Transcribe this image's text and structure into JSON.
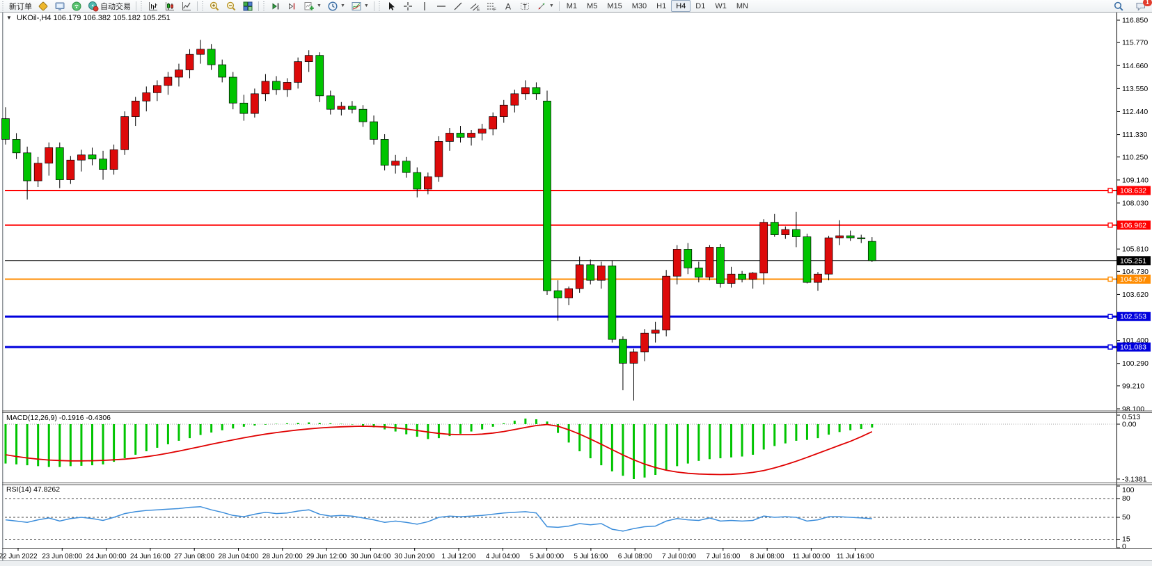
{
  "toolbar": {
    "new_order_label": "新订单",
    "autotrade_label": "自动交易",
    "groups": [
      {
        "items": [
          {
            "name": "new-order-button",
            "label_key": "new_order_label"
          },
          {
            "name": "gold-diamond-button",
            "icon": "gold-diamond-icon"
          },
          {
            "name": "monitor-button",
            "icon": "monitor-icon"
          },
          {
            "name": "signal-button",
            "icon": "signal-icon"
          },
          {
            "name": "autotrade-button",
            "icon": "autotrade-icon",
            "label_key": "autotrade_label"
          }
        ]
      },
      {
        "items": [
          {
            "name": "bar-chart-button",
            "icon": "bar-chart-icon"
          },
          {
            "name": "candlestick-button",
            "icon": "candlestick-icon"
          },
          {
            "name": "line-chart-button",
            "icon": "line-chart-icon"
          }
        ]
      },
      {
        "items": [
          {
            "name": "zoom-in-button",
            "icon": "zoom-in-icon"
          },
          {
            "name": "zoom-out-button",
            "icon": "zoom-out-icon"
          },
          {
            "name": "tile-windows-button",
            "icon": "tile-windows-icon"
          }
        ]
      },
      {
        "items": [
          {
            "name": "auto-scroll-button",
            "icon": "step-forward-icon"
          },
          {
            "name": "chart-shift-button",
            "icon": "step-single-icon"
          },
          {
            "name": "new-chart-button",
            "icon": "add-chart-icon",
            "dropdown": true
          },
          {
            "name": "period-button",
            "icon": "clock-icon",
            "dropdown": true
          },
          {
            "name": "templates-button",
            "icon": "chart-settings-icon",
            "dropdown": true
          }
        ]
      },
      {
        "items": [
          {
            "name": "cursor-button",
            "icon": "pointer-icon"
          },
          {
            "name": "crosshair-button",
            "icon": "crosshair-icon"
          },
          {
            "name": "vline-button",
            "icon": "vline-icon"
          },
          {
            "name": "hline-button",
            "icon": "hline-icon"
          },
          {
            "name": "trendline-button",
            "icon": "trendline-icon"
          },
          {
            "name": "channel-button",
            "icon": "channel-icon"
          },
          {
            "name": "fibonacci-button",
            "icon": "fibonacci-icon"
          },
          {
            "name": "text-button",
            "icon": "text-icon"
          },
          {
            "name": "text-label-button",
            "icon": "label-icon"
          },
          {
            "name": "arrows-button",
            "icon": "arrows-icon",
            "dropdown": true
          }
        ]
      }
    ],
    "timeframes": [
      "M1",
      "M5",
      "M15",
      "M30",
      "H1",
      "H4",
      "D1",
      "W1",
      "MN"
    ],
    "active_timeframe": "H4",
    "chat_badge": "1"
  },
  "chart": {
    "title": "UKOil-,H4  106.179 106.382 105.182 105.251",
    "collapse_glyph": "▼"
  },
  "macd_panel_label": "MACD(12,26,9) -0.1916 -0.4306",
  "rsi_panel_label": "RSI(14) 47.8262",
  "chart_data": {
    "type": "candlestick",
    "symbol": "UKOil-",
    "timeframe": "H4",
    "last_ohlc": {
      "open": 106.179,
      "high": 106.382,
      "low": 105.182,
      "close": 105.251
    },
    "up_candle_color": "#dd0a0a",
    "down_candle_color": "#00c400",
    "price_range": [
      98.1,
      116.85
    ],
    "price_axis_ticks": [
      116.85,
      115.77,
      114.66,
      113.55,
      112.44,
      111.33,
      110.25,
      109.14,
      108.03,
      105.81,
      104.73,
      103.62,
      101.4,
      100.29,
      99.21,
      98.1
    ],
    "hlines": [
      {
        "label": "108.632",
        "price": 108.632,
        "color": "#ff0000",
        "width": 2,
        "marker": true
      },
      {
        "label": "106.962",
        "price": 106.962,
        "color": "#ff0000",
        "width": 2,
        "marker": true
      },
      {
        "label": "105.251",
        "price": 105.251,
        "color": "#000000",
        "width": 1,
        "marker": false
      },
      {
        "label": "104.357",
        "price": 104.357,
        "color": "#ff8c00",
        "width": 2,
        "marker": true
      },
      {
        "label": "102.553",
        "price": 102.553,
        "color": "#0000dd",
        "width": 3,
        "marker": true
      },
      {
        "label": "101.083",
        "price": 101.083,
        "color": "#0000dd",
        "width": 3,
        "marker": true
      }
    ],
    "time_labels": [
      "22 Jun 2022",
      "23 Jun 08:00",
      "24 Jun 00:00",
      "24 Jun 16:00",
      "27 Jun 08:00",
      "28 Jun 04:00",
      "28 Jun 20:00",
      "29 Jun 12:00",
      "30 Jun 04:00",
      "30 Jun 20:00",
      "1 Jul 12:00",
      "4 Jul 04:00",
      "5 Jul 00:00",
      "5 Jul 16:00",
      "6 Jul 08:00",
      "7 Jul 00:00",
      "7 Jul 16:00",
      "8 Jul 08:00",
      "11 Jul 00:00",
      "11 Jul 16:00"
    ],
    "candles": [
      [
        112.1,
        112.65,
        110.85,
        111.1
      ],
      [
        111.1,
        111.4,
        110.15,
        110.45
      ],
      [
        110.45,
        110.75,
        108.2,
        109.1
      ],
      [
        109.1,
        110.25,
        108.8,
        109.95
      ],
      [
        109.95,
        110.95,
        109.35,
        110.7
      ],
      [
        110.7,
        110.95,
        108.75,
        109.15
      ],
      [
        109.15,
        110.3,
        108.95,
        110.1
      ],
      [
        110.1,
        110.6,
        109.55,
        110.35
      ],
      [
        110.35,
        110.7,
        109.85,
        110.15
      ],
      [
        110.15,
        110.55,
        109.15,
        109.65
      ],
      [
        109.65,
        110.85,
        109.4,
        110.6
      ],
      [
        110.6,
        112.45,
        110.35,
        112.2
      ],
      [
        112.2,
        113.15,
        111.75,
        112.95
      ],
      [
        112.95,
        113.65,
        112.45,
        113.35
      ],
      [
        113.35,
        113.95,
        112.95,
        113.7
      ],
      [
        113.7,
        114.35,
        113.25,
        114.1
      ],
      [
        114.1,
        114.75,
        113.65,
        114.45
      ],
      [
        114.45,
        115.45,
        114.05,
        115.2
      ],
      [
        115.2,
        115.9,
        114.75,
        115.45
      ],
      [
        115.45,
        115.7,
        114.45,
        114.7
      ],
      [
        114.7,
        114.95,
        113.85,
        114.1
      ],
      [
        114.1,
        114.35,
        112.55,
        112.85
      ],
      [
        112.85,
        113.25,
        112.0,
        112.35
      ],
      [
        112.35,
        113.55,
        112.15,
        113.3
      ],
      [
        113.3,
        114.25,
        112.95,
        113.9
      ],
      [
        113.9,
        114.15,
        113.25,
        113.5
      ],
      [
        113.5,
        114.05,
        113.15,
        113.85
      ],
      [
        113.85,
        115.05,
        113.55,
        114.85
      ],
      [
        114.85,
        115.4,
        114.35,
        115.15
      ],
      [
        115.15,
        115.3,
        112.9,
        113.2
      ],
      [
        113.2,
        113.45,
        112.3,
        112.55
      ],
      [
        112.55,
        112.9,
        112.25,
        112.7
      ],
      [
        112.7,
        112.95,
        112.35,
        112.55
      ],
      [
        112.55,
        112.75,
        111.7,
        111.95
      ],
      [
        111.95,
        112.25,
        110.85,
        111.1
      ],
      [
        111.1,
        111.35,
        109.6,
        109.85
      ],
      [
        109.85,
        110.35,
        109.45,
        110.05
      ],
      [
        110.05,
        110.25,
        109.25,
        109.5
      ],
      [
        109.5,
        109.75,
        108.3,
        108.7
      ],
      [
        108.7,
        109.5,
        108.45,
        109.3
      ],
      [
        109.3,
        111.25,
        109.05,
        111.0
      ],
      [
        111.0,
        111.65,
        110.55,
        111.4
      ],
      [
        111.4,
        111.75,
        110.95,
        111.2
      ],
      [
        111.2,
        111.55,
        110.8,
        111.4
      ],
      [
        111.4,
        111.85,
        111.05,
        111.6
      ],
      [
        111.6,
        112.4,
        111.3,
        112.2
      ],
      [
        112.2,
        113.0,
        111.9,
        112.75
      ],
      [
        112.75,
        113.5,
        112.4,
        113.3
      ],
      [
        113.3,
        113.95,
        113.0,
        113.6
      ],
      [
        113.6,
        113.85,
        113.0,
        113.3
      ],
      [
        112.95,
        113.45,
        103.6,
        103.8
      ],
      [
        103.8,
        104.3,
        102.35,
        103.45
      ],
      [
        103.45,
        104.0,
        103.1,
        103.9
      ],
      [
        103.9,
        105.45,
        103.7,
        105.05
      ],
      [
        105.05,
        105.3,
        104.1,
        104.3
      ],
      [
        104.3,
        105.2,
        103.9,
        105.0
      ],
      [
        105.0,
        105.25,
        101.3,
        101.45
      ],
      [
        101.45,
        101.6,
        99.0,
        100.3
      ],
      [
        100.3,
        101.0,
        98.5,
        100.85
      ],
      [
        100.85,
        101.95,
        100.4,
        101.75
      ],
      [
        101.75,
        102.3,
        101.3,
        101.9
      ],
      [
        101.9,
        104.8,
        101.6,
        104.5
      ],
      [
        104.5,
        106.0,
        104.1,
        105.8
      ],
      [
        105.8,
        106.1,
        104.6,
        104.9
      ],
      [
        104.9,
        105.2,
        104.2,
        104.45
      ],
      [
        104.45,
        106.0,
        104.3,
        105.9
      ],
      [
        105.9,
        106.05,
        103.95,
        104.15
      ],
      [
        104.15,
        104.95,
        103.95,
        104.6
      ],
      [
        104.6,
        104.75,
        104.2,
        104.35
      ],
      [
        104.35,
        104.7,
        103.9,
        104.65
      ],
      [
        104.65,
        107.25,
        104.1,
        107.1
      ],
      [
        107.1,
        107.5,
        106.4,
        106.5
      ],
      [
        106.5,
        106.9,
        106.3,
        106.75
      ],
      [
        106.75,
        107.6,
        105.9,
        106.4
      ],
      [
        106.4,
        106.55,
        104.15,
        104.2
      ],
      [
        104.2,
        104.7,
        103.8,
        104.6
      ],
      [
        104.6,
        106.45,
        104.3,
        106.35
      ],
      [
        106.35,
        107.2,
        106.0,
        106.45
      ],
      [
        106.45,
        106.7,
        106.2,
        106.35
      ],
      [
        106.35,
        106.5,
        106.1,
        106.3
      ],
      [
        106.179,
        106.382,
        105.182,
        105.251
      ]
    ],
    "indicators": {
      "macd": {
        "label": "MACD(12,26,9)",
        "values_text": "-0.1916 -0.4306",
        "axis_ticks": [
          "0.513",
          "0.00",
          "-3.1381"
        ],
        "range": [
          -3.1381,
          0.513
        ],
        "histogram_color": "#00c400",
        "signal_color": "#e00000",
        "histogram": [
          -2.25,
          -2.3,
          -2.35,
          -2.4,
          -2.45,
          -2.45,
          -2.4,
          -2.38,
          -2.35,
          -2.3,
          -2.15,
          -1.95,
          -1.75,
          -1.55,
          -1.35,
          -1.15,
          -0.95,
          -0.8,
          -0.62,
          -0.48,
          -0.35,
          -0.25,
          -0.15,
          -0.08,
          -0.03,
          0.02,
          0.05,
          0.08,
          0.1,
          0.08,
          0.05,
          0.02,
          -0.02,
          -0.08,
          -0.18,
          -0.3,
          -0.42,
          -0.58,
          -0.72,
          -0.85,
          -0.8,
          -0.68,
          -0.55,
          -0.42,
          -0.3,
          -0.15,
          0.05,
          0.2,
          0.32,
          0.28,
          0.15,
          -0.5,
          -1.05,
          -1.55,
          -1.95,
          -2.35,
          -2.7,
          -2.95,
          -3.14,
          -3.05,
          -2.9,
          -2.65,
          -2.4,
          -2.25,
          -2.1,
          -2.0,
          -1.95,
          -1.9,
          -1.85,
          -1.75,
          -1.45,
          -1.25,
          -1.1,
          -0.95,
          -0.9,
          -0.8,
          -0.6,
          -0.45,
          -0.35,
          -0.28,
          -0.1916
        ],
        "signal": [
          -1.75,
          -1.85,
          -1.93,
          -2.0,
          -2.05,
          -2.08,
          -2.1,
          -2.1,
          -2.09,
          -2.07,
          -2.04,
          -2.0,
          -1.94,
          -1.86,
          -1.77,
          -1.66,
          -1.54,
          -1.41,
          -1.28,
          -1.15,
          -1.02,
          -0.9,
          -0.78,
          -0.67,
          -0.57,
          -0.48,
          -0.4,
          -0.33,
          -0.27,
          -0.22,
          -0.18,
          -0.15,
          -0.13,
          -0.12,
          -0.13,
          -0.16,
          -0.21,
          -0.28,
          -0.36,
          -0.45,
          -0.53,
          -0.58,
          -0.6,
          -0.6,
          -0.57,
          -0.51,
          -0.42,
          -0.31,
          -0.19,
          -0.08,
          -0.02,
          -0.12,
          -0.32,
          -0.57,
          -0.85,
          -1.15,
          -1.46,
          -1.76,
          -2.04,
          -2.28,
          -2.48,
          -2.63,
          -2.74,
          -2.81,
          -2.85,
          -2.87,
          -2.88,
          -2.87,
          -2.83,
          -2.76,
          -2.65,
          -2.5,
          -2.32,
          -2.12,
          -1.9,
          -1.67,
          -1.44,
          -1.21,
          -0.98,
          -0.72,
          -0.4306
        ]
      },
      "rsi": {
        "label": "RSI(14)",
        "value_text": "47.8262",
        "axis_ticks": [
          "100",
          "80",
          "50",
          "15",
          "0"
        ],
        "levels": [
          80,
          50,
          15
        ],
        "range": [
          0,
          100
        ],
        "color": "#3d8edb",
        "series": [
          46,
          44,
          42,
          46,
          49,
          44,
          48,
          50,
          48,
          45,
          50,
          56,
          59,
          61,
          62,
          63,
          64,
          66,
          67,
          62,
          58,
          53,
          51,
          55,
          58,
          56,
          57,
          60,
          62,
          55,
          52,
          53,
          52,
          49,
          46,
          42,
          44,
          42,
          39,
          43,
          50,
          52,
          51,
          52,
          53,
          55,
          57,
          58,
          59,
          57,
          35,
          34,
          36,
          40,
          38,
          40,
          31,
          28,
          32,
          35,
          36,
          44,
          48,
          46,
          45,
          49,
          44,
          45,
          44,
          45,
          52,
          50,
          51,
          50,
          44,
          46,
          51,
          51,
          50,
          49,
          47.83
        ]
      }
    }
  }
}
